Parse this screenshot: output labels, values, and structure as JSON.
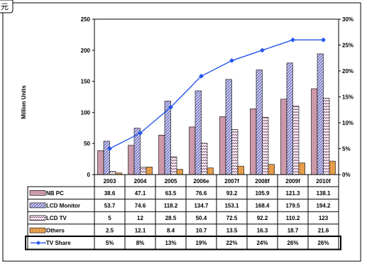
{
  "corner_label": "元",
  "chart_data": {
    "type": "bar",
    "categories": [
      "2003",
      "2004",
      "2005",
      "2006e",
      "2007f",
      "2008f",
      "2009f",
      "2010f"
    ],
    "ylabel": "Million Units",
    "ylim": [
      0,
      250
    ],
    "y_ticks": [
      "0",
      "50",
      "100",
      "150",
      "200",
      "250"
    ],
    "y2lim": [
      0,
      30
    ],
    "y2_ticks": [
      "0%",
      "5%",
      "10%",
      "15%",
      "20%",
      "25%",
      "30%"
    ],
    "legend": "data-table",
    "series": [
      {
        "name": "NB PC",
        "values": [
          38.6,
          47.1,
          63.5,
          76.6,
          93.2,
          105.9,
          121.3,
          138.1
        ],
        "labels": [
          "38.6",
          "47.1",
          "63.5",
          "76.6",
          "93.2",
          "105.9",
          "121.3",
          "138.1"
        ],
        "color": "#cc99aa",
        "pattern": "solid"
      },
      {
        "name": "LCD Monitor",
        "values": [
          53.7,
          74.6,
          118.2,
          134.7,
          153.1,
          168.4,
          179.5,
          194.2
        ],
        "labels": [
          "53.7",
          "74.6",
          "118.2",
          "134.7",
          "153.1",
          "168.4",
          "179.5",
          "194.2"
        ],
        "color": "#ccccee",
        "pattern": "diagonal"
      },
      {
        "name": "LCD TV",
        "values": [
          5,
          12,
          28.5,
          50.4,
          72.5,
          92.2,
          110.2,
          123
        ],
        "labels": [
          "5",
          "12",
          "28.5",
          "50.4",
          "72.5",
          "92.2",
          "110.2",
          "123"
        ],
        "color": "#ffffff",
        "pattern": "zigzag"
      },
      {
        "name": "Others",
        "values": [
          2.5,
          12.1,
          8.4,
          10.7,
          13.5,
          16.3,
          18.7,
          21.6
        ],
        "labels": [
          "2.5",
          "12.1",
          "8.4",
          "10.7",
          "13.5",
          "16.3",
          "18.7",
          "21.6"
        ],
        "color": "#f5b060",
        "pattern": "vertical"
      }
    ],
    "line_series": {
      "name": "TV Share",
      "axis": "right",
      "values": [
        5,
        8,
        13,
        19,
        22,
        24,
        26,
        26
      ],
      "labels": [
        "5%",
        "8%",
        "13%",
        "19%",
        "22%",
        "24%",
        "26%",
        "26%"
      ],
      "color": "#2255ee"
    }
  }
}
